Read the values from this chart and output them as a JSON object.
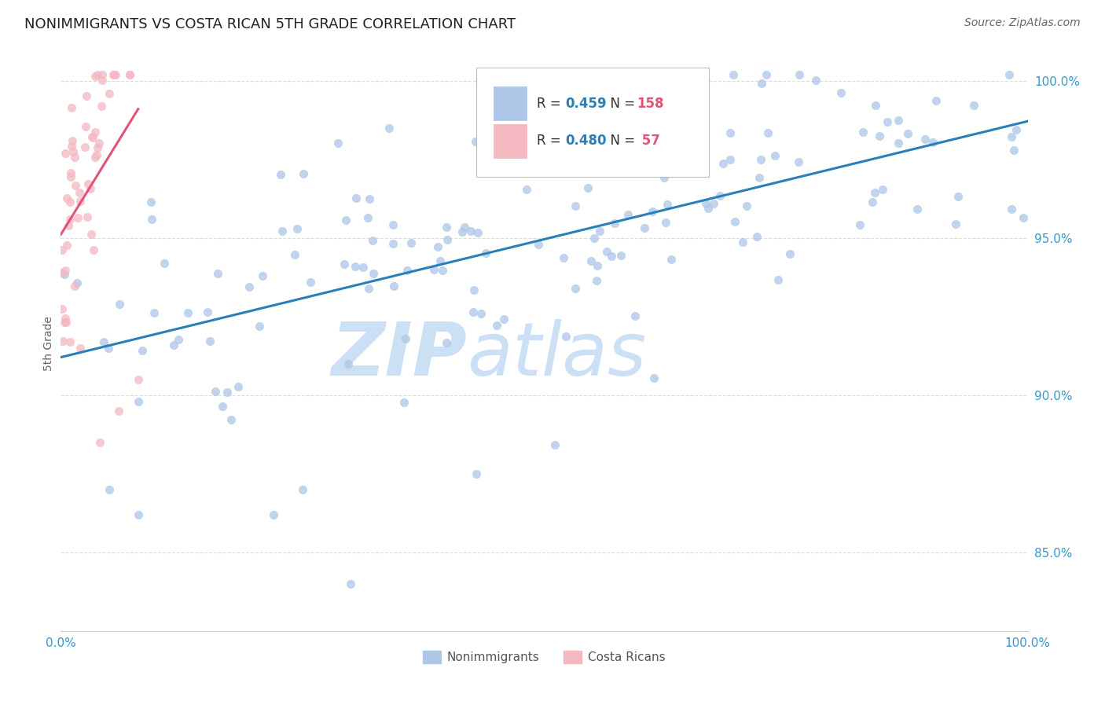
{
  "title": "NONIMMIGRANTS VS COSTA RICAN 5TH GRADE CORRELATION CHART",
  "source": "Source: ZipAtlas.com",
  "ylabel": "5th Grade",
  "nonimmigrants_color": "#aec6e8",
  "costa_ricans_color": "#f4b8c1",
  "nonimmigrants_line_color": "#2980b9",
  "costa_ricans_line_color": "#e05575",
  "scatter_size": 55,
  "scatter_alpha": 0.75,
  "xlim": [
    0.0,
    1.0
  ],
  "ylim": [
    0.825,
    1.008
  ],
  "y_ticks": [
    0.85,
    0.9,
    0.95,
    1.0
  ],
  "y_tick_labels": [
    "85.0%",
    "90.0%",
    "95.0%",
    "100.0%"
  ],
  "watermark_zip": "ZIP",
  "watermark_atlas": "atlas",
  "watermark_color": "#cce0f5",
  "background_color": "#ffffff",
  "legend_r1": "0.459",
  "legend_n1": "158",
  "legend_r2": "0.480",
  "legend_n2": " 57",
  "legend_blue": "#2980b9",
  "legend_pink": "#e05575",
  "bottom_legend_nonimm": "Nonimmigrants",
  "bottom_legend_cr": "Costa Ricans"
}
